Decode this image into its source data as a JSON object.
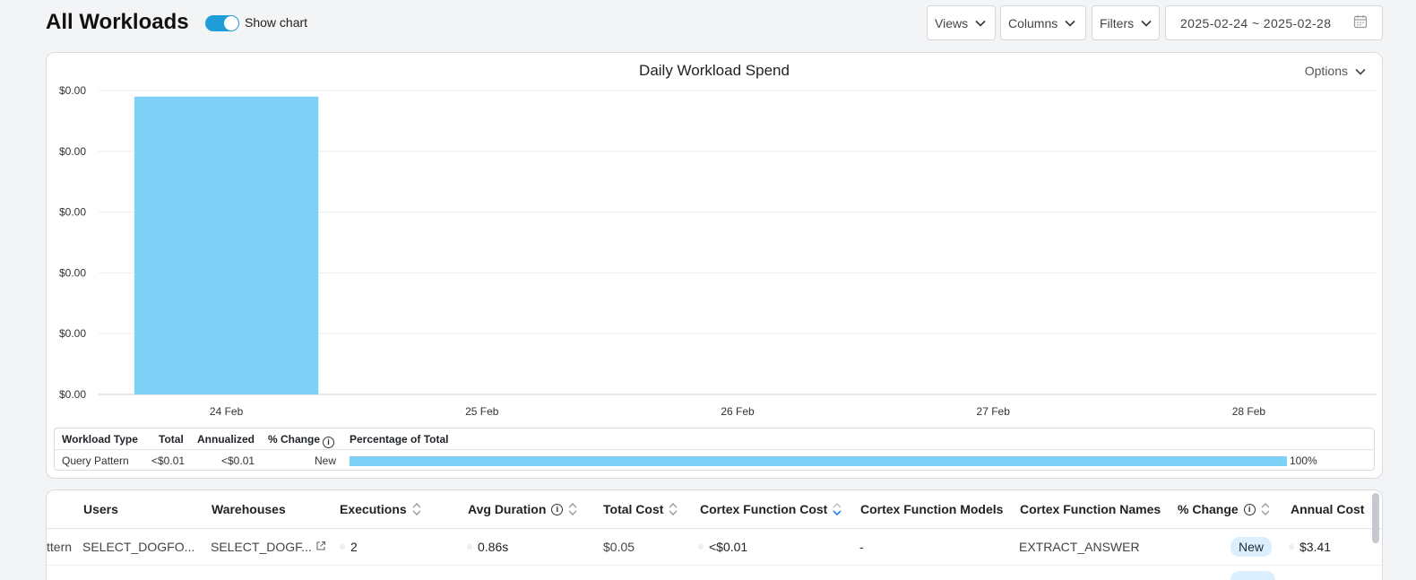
{
  "header": {
    "title": "All Workloads",
    "show_chart_label": "Show chart",
    "show_chart_enabled": true,
    "views_label": "Views",
    "columns_label": "Columns",
    "filters_label": "Filters",
    "date_range": "2025-02-24 ~ 2025-02-28"
  },
  "chart": {
    "options_label": "Options"
  },
  "chart_data": {
    "type": "bar",
    "title": "Daily Workload Spend",
    "categories": [
      "24 Feb",
      "25 Feb",
      "26 Feb",
      "27 Feb",
      "28 Feb"
    ],
    "values": [
      0.0049,
      0,
      0,
      0,
      0
    ],
    "y_tick_labels": [
      "$0.00",
      "$0.00",
      "$0.00",
      "$0.00",
      "$0.00",
      "$0.00"
    ],
    "ylim": [
      0,
      0.005
    ],
    "grid": true,
    "color": "#7fd0f7"
  },
  "summary": {
    "headers": {
      "workload_type": "Workload Type",
      "total": "Total",
      "annualized": "Annualized",
      "pct_change": "% Change",
      "pct_of_total": "Percentage of Total"
    },
    "row": {
      "workload_type": "Query Pattern",
      "total": "<$0.01",
      "annualized": "<$0.01",
      "pct_change": "New",
      "pct_of_total": "100%",
      "pct_of_total_value": 100
    }
  },
  "table": {
    "headers": {
      "users": "Users",
      "warehouses": "Warehouses",
      "executions": "Executions",
      "avg_duration": "Avg Duration",
      "total_cost": "Total Cost",
      "cortex_function_cost": "Cortex Function Cost",
      "cortex_function_models": "Cortex Function Models",
      "cortex_function_names": "Cortex Function Names",
      "pct_change": "% Change",
      "annual_cost": "Annual Cost"
    },
    "rows": [
      {
        "first_col": "ttern",
        "users": "SELECT_DOGFO...",
        "warehouses": "SELECT_DOGF...",
        "executions": "2",
        "avg_duration": "0.86s",
        "total_cost": "$0.05",
        "cortex_function_cost": "<$0.01",
        "cortex_function_models": "-",
        "cortex_function_names": "EXTRACT_ANSWER",
        "pct_change": "New",
        "annual_cost": "$3.41"
      }
    ]
  },
  "colors": {
    "accent": "#1f9ddb",
    "bar": "#7fd0f7",
    "badge": "#dcefff"
  }
}
